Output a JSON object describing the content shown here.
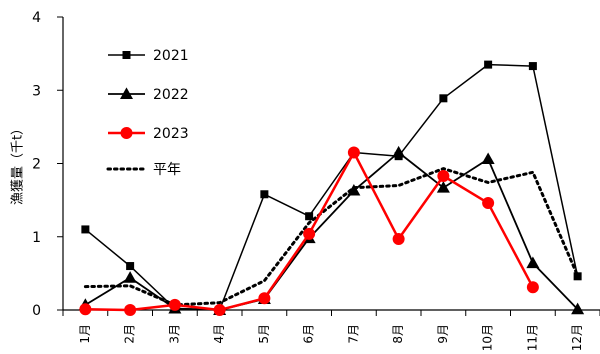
{
  "chart_data": {
    "type": "line",
    "title": "",
    "xlabel": "",
    "ylabel": "漁獲量（千t）",
    "categories": [
      "1月",
      "2月",
      "3月",
      "4月",
      "5月",
      "6月",
      "7月",
      "8月",
      "9月",
      "10月",
      "11月",
      "12月"
    ],
    "ylim": [
      0,
      4
    ],
    "yticks": [
      0,
      1,
      2,
      3,
      4
    ],
    "grid": false,
    "legend_position": "top-left",
    "series": [
      {
        "name": "2021",
        "color": "#000000",
        "marker": "square",
        "style": "solid",
        "values": [
          1.1,
          0.6,
          0.02,
          0.0,
          1.58,
          1.28,
          2.15,
          2.1,
          2.89,
          3.35,
          3.33,
          0.46
        ]
      },
      {
        "name": "2022",
        "color": "#000000",
        "marker": "triangle",
        "style": "solid",
        "values": [
          0.07,
          0.44,
          0.02,
          0.0,
          0.15,
          0.98,
          1.63,
          2.15,
          1.67,
          2.06,
          0.64,
          0.01
        ]
      },
      {
        "name": "2023",
        "color": "#ff0000",
        "marker": "circle",
        "style": "solid",
        "values": [
          0.01,
          0.0,
          0.07,
          0.0,
          0.16,
          1.04,
          2.15,
          0.97,
          1.83,
          1.46,
          0.31,
          null
        ]
      },
      {
        "name": "平年",
        "color": "#000000",
        "marker": "none",
        "style": "dotted",
        "values": [
          0.32,
          0.33,
          0.07,
          0.1,
          0.4,
          1.19,
          1.67,
          1.7,
          1.93,
          1.74,
          1.88,
          0.47
        ]
      }
    ]
  }
}
